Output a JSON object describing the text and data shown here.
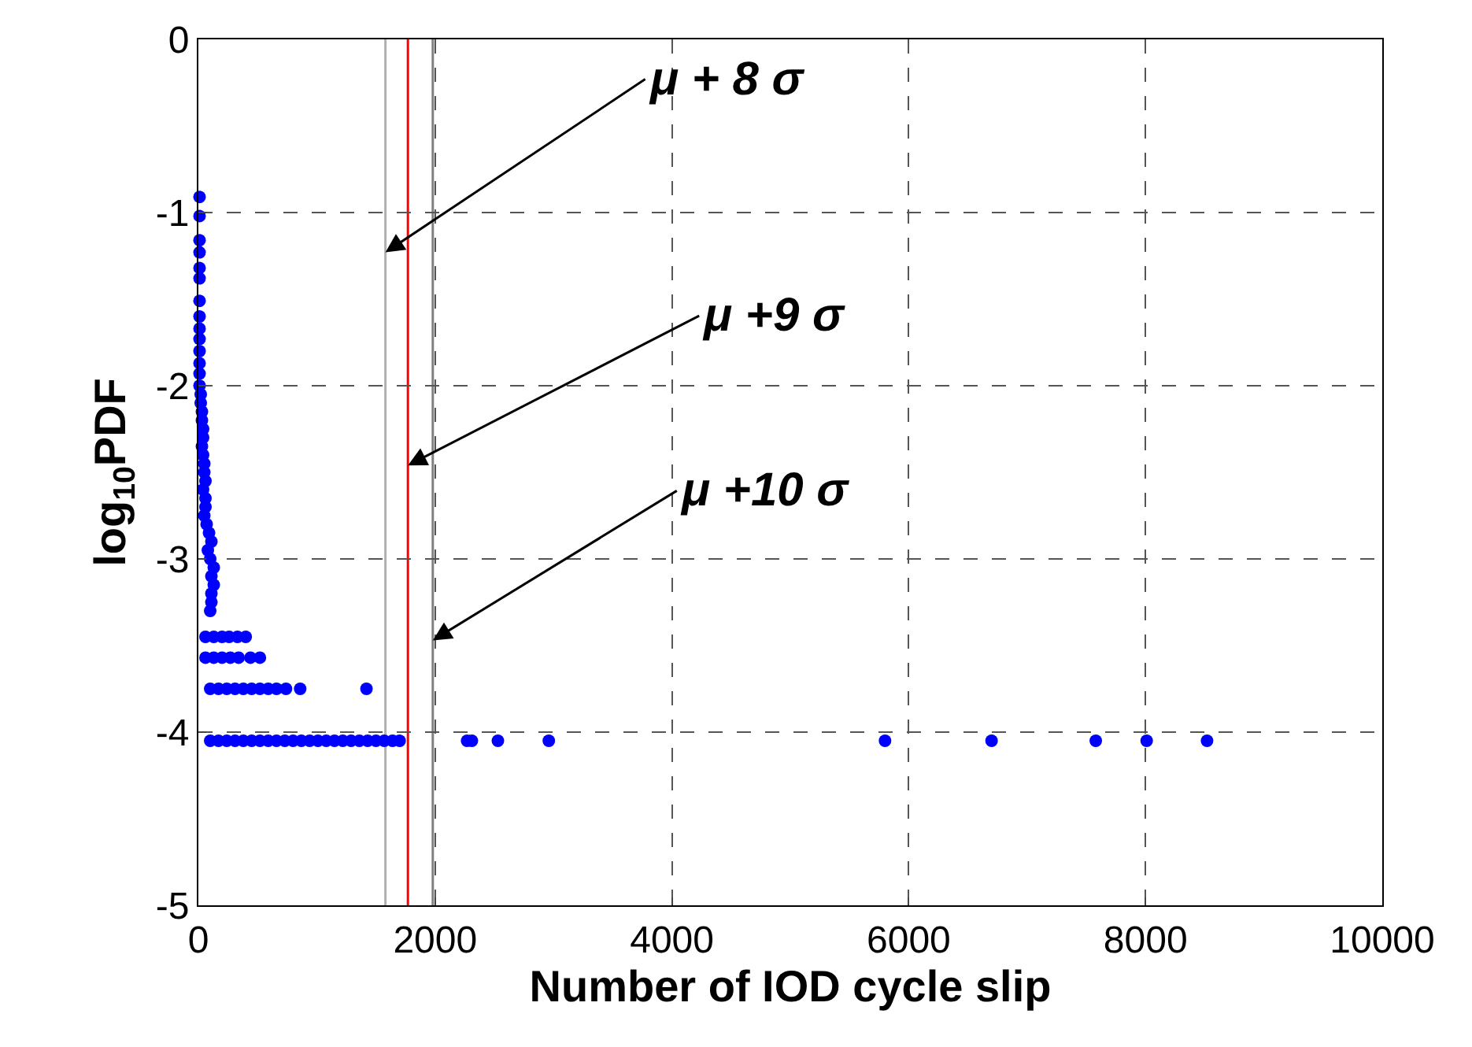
{
  "chart_data": {
    "type": "scatter",
    "xlabel": "Number of IOD cycle slip",
    "ylabel": "log$_{10}$PDF",
    "xlim": [
      0,
      10000
    ],
    "xticks": [
      0,
      2000,
      4000,
      6000,
      8000,
      10000
    ],
    "ylim": [
      -5,
      0
    ],
    "yticks": [
      -5,
      -4,
      -3,
      -2,
      -1,
      0
    ],
    "grid": true,
    "marker": "circle",
    "series": [
      {
        "color": "#0000ff",
        "x": [
          10,
          10,
          10,
          10,
          10,
          10,
          10,
          10,
          10,
          10,
          10,
          10,
          10,
          10,
          20,
          20,
          30,
          30,
          40,
          40,
          30,
          40,
          50,
          50,
          60,
          40,
          60,
          60,
          50,
          70,
          90,
          110,
          80,
          100,
          130,
          110,
          130,
          110,
          110,
          100,
          60,
          130,
          200,
          260,
          330,
          400,
          60,
          130,
          200,
          270,
          340,
          440,
          520,
          100,
          170,
          240,
          310,
          380,
          450,
          520,
          590,
          660,
          740,
          860,
          1420,
          100,
          170,
          240,
          310,
          380,
          450,
          520,
          590,
          660,
          730,
          800,
          870,
          940,
          1010,
          1080,
          1150,
          1220,
          1290,
          1360,
          1430,
          1500,
          1570,
          1640,
          1700,
          2270,
          2310,
          2530,
          2960,
          5800,
          6700,
          7580,
          8010,
          8520
        ],
        "values": [
          -0.91,
          -1.02,
          -1.16,
          -1.23,
          -1.32,
          -1.38,
          -1.51,
          -1.6,
          -1.67,
          -1.73,
          -1.8,
          -1.87,
          -1.93,
          -2.0,
          -2.05,
          -2.1,
          -2.15,
          -2.2,
          -2.25,
          -2.3,
          -2.35,
          -2.4,
          -2.45,
          -2.5,
          -2.55,
          -2.6,
          -2.65,
          -2.7,
          -2.75,
          -2.8,
          -2.85,
          -2.9,
          -2.95,
          -3.0,
          -3.05,
          -3.1,
          -3.15,
          -3.2,
          -3.25,
          -3.3,
          -3.45,
          -3.45,
          -3.45,
          -3.45,
          -3.45,
          -3.45,
          -3.57,
          -3.57,
          -3.57,
          -3.57,
          -3.57,
          -3.57,
          -3.57,
          -3.75,
          -3.75,
          -3.75,
          -3.75,
          -3.75,
          -3.75,
          -3.75,
          -3.75,
          -3.75,
          -3.75,
          -3.75,
          -3.75,
          -4.05,
          -4.05,
          -4.05,
          -4.05,
          -4.05,
          -4.05,
          -4.05,
          -4.05,
          -4.05,
          -4.05,
          -4.05,
          -4.05,
          -4.05,
          -4.05,
          -4.05,
          -4.05,
          -4.05,
          -4.05,
          -4.05,
          -4.05,
          -4.05,
          -4.05,
          -4.05,
          -4.05,
          -4.05,
          -4.05,
          -4.05,
          -4.05,
          -4.05,
          -4.05,
          -4.05,
          -4.05,
          -4.05
        ]
      }
    ],
    "ref_lines": [
      {
        "axis": "x",
        "value": 1580,
        "color": "#b0b0b0"
      },
      {
        "axis": "x",
        "value": 1770,
        "color": "#ff0000"
      },
      {
        "axis": "x",
        "value": 1980,
        "color": "#808080"
      }
    ],
    "annotations": [
      {
        "text": "μ + 8 σ",
        "x": 1580,
        "y": -1.23
      },
      {
        "text": "μ +9 σ",
        "x": 1770,
        "y": -2.46
      },
      {
        "text": "μ +10 σ",
        "x": 1980,
        "y": -3.47
      }
    ]
  }
}
